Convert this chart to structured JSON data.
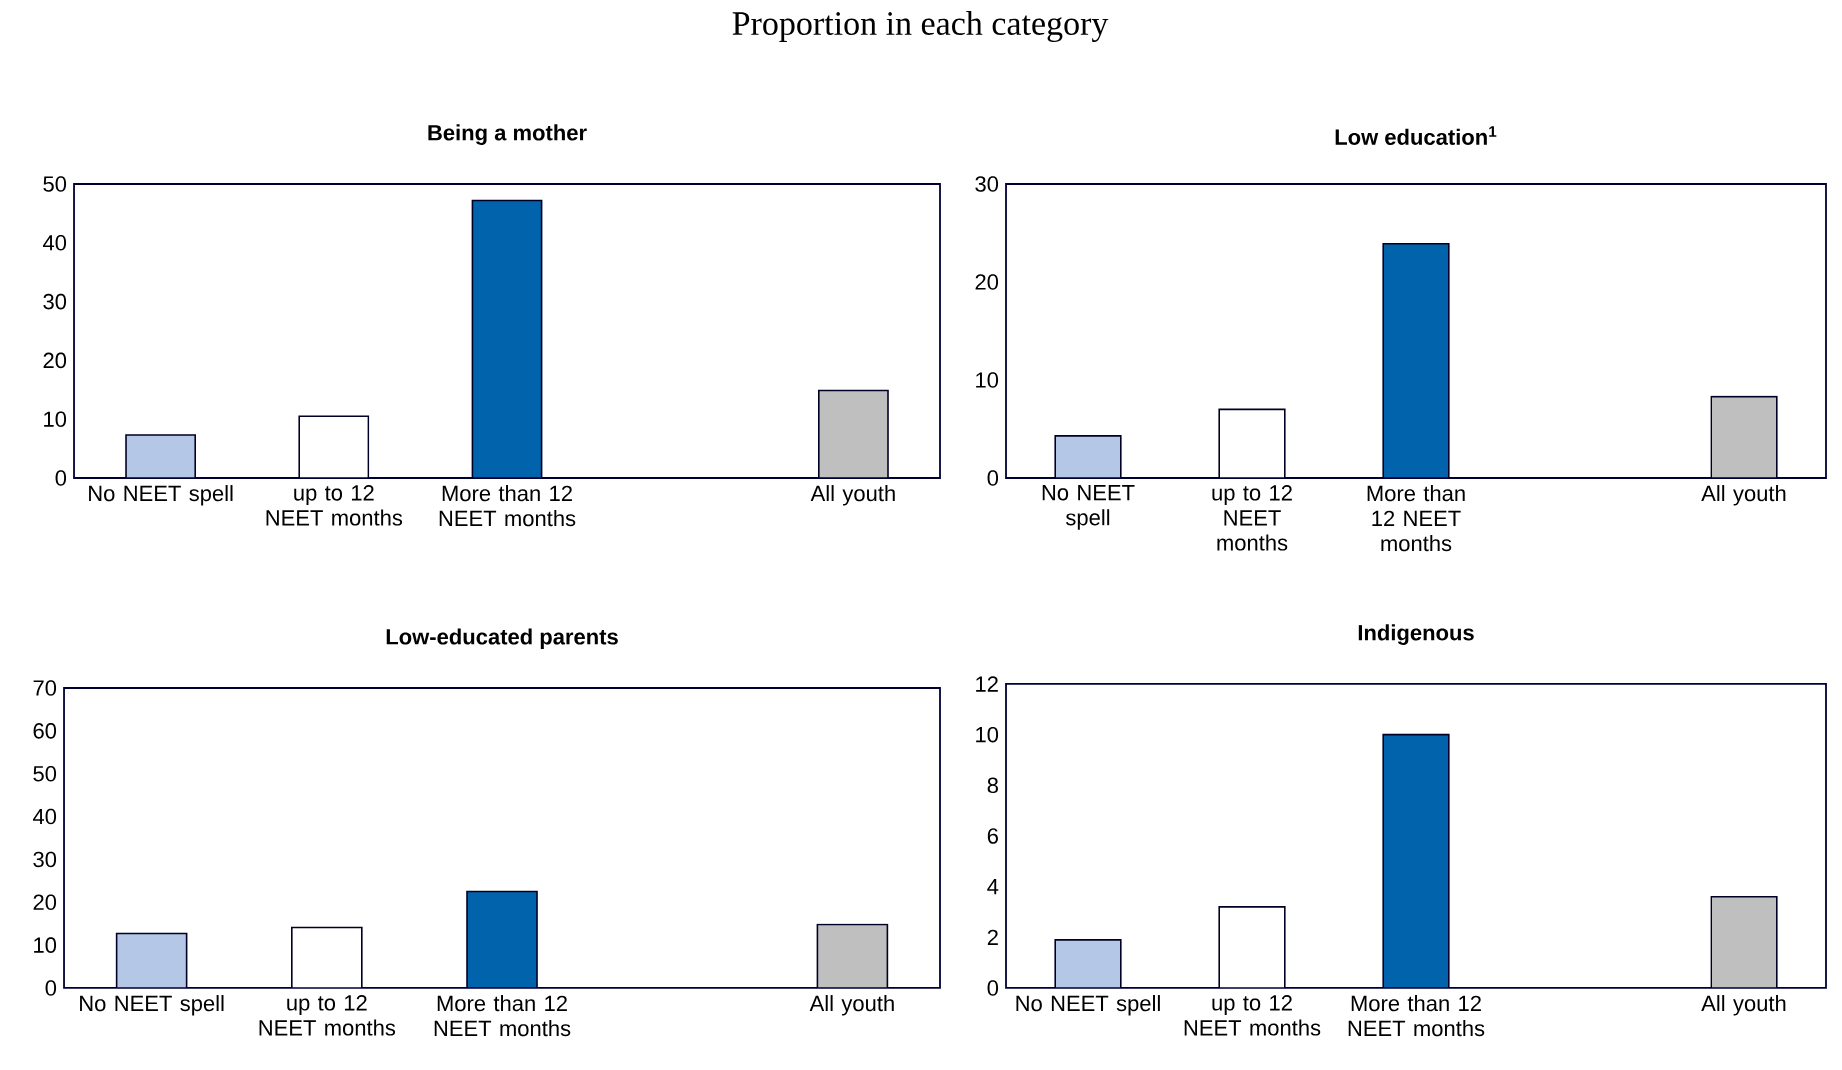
{
  "chart_data": [
    {
      "type": "bar",
      "title": "Being a mother",
      "annotations": [
        "Proportion in each category"
      ],
      "categories": [
        "No NEET spell",
        "up to 12 NEET months",
        "More than 12 NEET months",
        null,
        "All youth"
      ],
      "values": [
        7.3,
        10.5,
        47.2,
        null,
        14.9
      ],
      "colors": [
        "#b4c7e7",
        "#ffffff",
        "#0063ac",
        null,
        "#bfbfbf"
      ],
      "ylim": [
        0,
        50
      ],
      "yticks": [
        0,
        10,
        20,
        30,
        40,
        50
      ]
    },
    {
      "type": "bar",
      "title": "Low education$^{1}$",
      "categories": [
        "No NEET spell",
        "up to 12 NEET months",
        "More than 12 NEET months",
        null,
        "All youth"
      ],
      "values": [
        4.3,
        7.0,
        23.9,
        null,
        8.3
      ],
      "colors": [
        "#b4c7e7",
        "#ffffff",
        "#0063ac",
        null,
        "#bfbfbf"
      ],
      "ylim": [
        0,
        30
      ],
      "yticks": [
        0,
        10,
        20,
        30
      ]
    },
    {
      "type": "bar",
      "title": "Low-educated parents",
      "categories": [
        "No NEET spell",
        "up to 12 NEET months",
        "More than 12 NEET months",
        null,
        "All youth"
      ],
      "values": [
        12.7,
        14.1,
        22.5,
        null,
        14.8
      ],
      "colors": [
        "#b4c7e7",
        "#ffffff",
        "#0063ac",
        null,
        "#bfbfbf"
      ],
      "ylim": [
        0,
        70
      ],
      "yticks": [
        0,
        10,
        20,
        30,
        40,
        50,
        60,
        70
      ]
    },
    {
      "type": "bar",
      "title": "Indigenous",
      "categories": [
        "No NEET spell",
        "up to 12 NEET months",
        "More than 12 NEET months",
        null,
        "All youth"
      ],
      "values": [
        1.9,
        3.2,
        10.0,
        null,
        3.6
      ],
      "colors": [
        "#b4c7e7",
        "#ffffff",
        "#0063ac",
        null,
        "#bfbfbf"
      ],
      "ylim": [
        0,
        12
      ],
      "yticks": [
        0,
        2,
        4,
        6,
        8,
        10,
        12
      ]
    }
  ]
}
